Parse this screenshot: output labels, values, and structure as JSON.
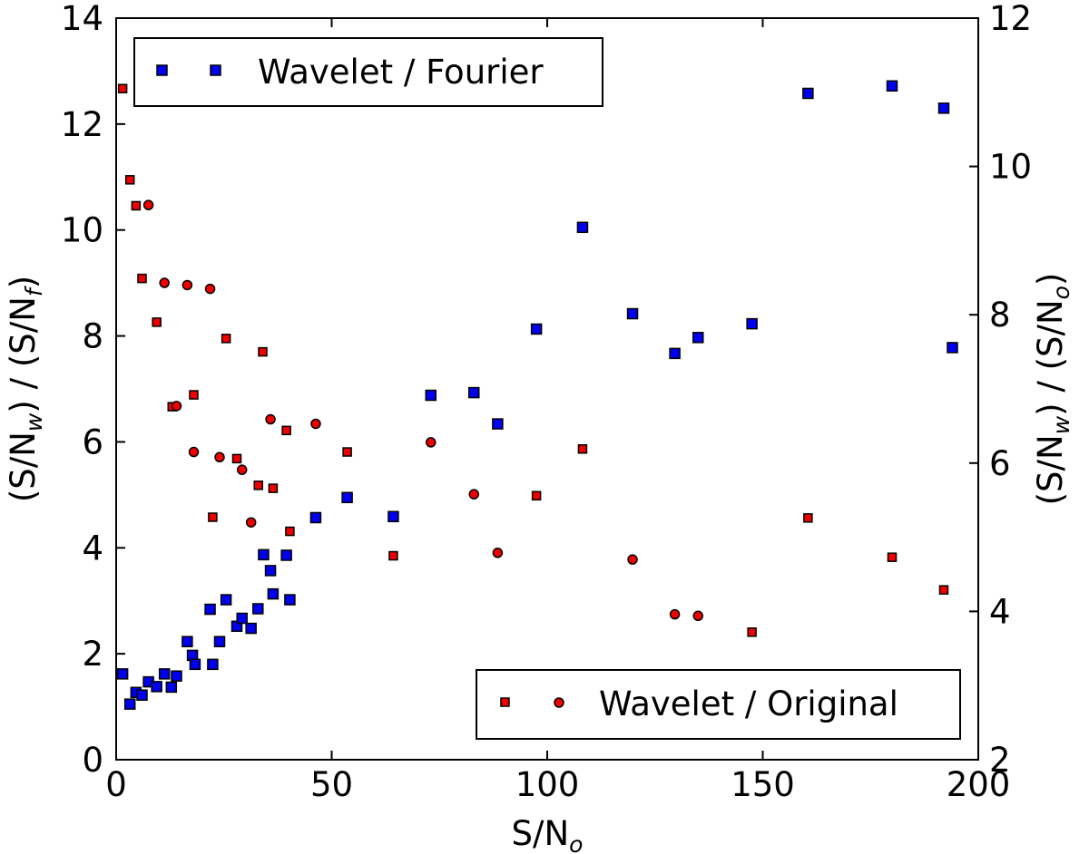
{
  "chart_data": {
    "type": "scatter",
    "x_axis": {
      "label": "S/N",
      "label_sub": "o",
      "lim": [
        0,
        200
      ],
      "ticks": [
        "0",
        "50",
        "100",
        "150",
        "200"
      ]
    },
    "y_left": {
      "label_parts": [
        "(S/N",
        "w",
        ") / (S/N",
        "f",
        ")"
      ],
      "lim": [
        0,
        14
      ],
      "ticks": [
        "0",
        "2",
        "4",
        "6",
        "8",
        "10",
        "12",
        "14"
      ]
    },
    "y_right": {
      "label_parts": [
        "(S/N",
        "w",
        ") / (S/N",
        "o",
        ")"
      ],
      "lim": [
        2,
        12
      ],
      "ticks": [
        "2",
        "4",
        "6",
        "8",
        "10",
        "12"
      ]
    },
    "grid": false,
    "legends": [
      {
        "label": "Wavelet / Fourier",
        "placement": "top-left",
        "color": "#0000ee",
        "markers": [
          "square",
          "square"
        ]
      },
      {
        "label": "Wavelet / Original",
        "placement": "bottom-right",
        "color": "#ee0000",
        "markers": [
          "square",
          "circle"
        ]
      }
    ],
    "series": [
      {
        "axis": "left",
        "marker": "square",
        "color": "#0000ee",
        "size": "large",
        "points": [
          [
            1.5,
            1.62
          ],
          [
            3.2,
            1.05
          ],
          [
            4.6,
            1.27
          ],
          [
            6.0,
            1.22
          ],
          [
            7.5,
            1.47
          ],
          [
            9.4,
            1.38
          ],
          [
            11.2,
            1.62
          ],
          [
            12.8,
            1.37
          ],
          [
            14.0,
            1.58
          ],
          [
            16.5,
            2.23
          ],
          [
            17.7,
            1.97
          ],
          [
            18.3,
            1.8
          ],
          [
            21.8,
            2.84
          ],
          [
            22.4,
            1.8
          ],
          [
            24.0,
            2.23
          ],
          [
            25.5,
            3.02
          ],
          [
            28.0,
            2.52
          ],
          [
            29.2,
            2.67
          ],
          [
            31.3,
            2.48
          ],
          [
            32.9,
            2.85
          ],
          [
            34.2,
            3.87
          ],
          [
            35.8,
            3.57
          ],
          [
            36.4,
            3.13
          ],
          [
            39.5,
            3.86
          ],
          [
            40.3,
            3.02
          ],
          [
            46.3,
            4.57
          ],
          [
            53.6,
            4.95
          ],
          [
            64.3,
            4.59
          ],
          [
            73.0,
            6.88
          ],
          [
            83.0,
            6.93
          ],
          [
            88.5,
            6.34
          ],
          [
            97.5,
            8.13
          ],
          [
            108.2,
            10.05
          ],
          [
            119.8,
            8.42
          ],
          [
            129.6,
            7.67
          ],
          [
            135.0,
            7.97
          ],
          [
            147.5,
            8.23
          ],
          [
            160.5,
            12.58
          ],
          [
            180.0,
            12.72
          ],
          [
            192.0,
            12.3
          ],
          [
            194.0,
            7.78
          ]
        ]
      },
      {
        "axis": "right",
        "marker": "square",
        "color": "#ee0000",
        "size": "small",
        "points": [
          [
            1.5,
            11.05
          ],
          [
            3.2,
            9.82
          ],
          [
            4.6,
            9.47
          ],
          [
            6.0,
            8.49
          ],
          [
            9.4,
            7.9
          ],
          [
            13.0,
            6.76
          ],
          [
            18.0,
            6.92
          ],
          [
            22.4,
            5.27
          ],
          [
            25.5,
            7.68
          ],
          [
            28.0,
            6.06
          ],
          [
            33.0,
            5.7
          ],
          [
            34.0,
            7.5
          ],
          [
            36.4,
            5.66
          ],
          [
            39.5,
            6.44
          ],
          [
            40.3,
            5.08
          ],
          [
            53.6,
            6.15
          ],
          [
            64.3,
            4.75
          ],
          [
            97.5,
            5.56
          ],
          [
            108.2,
            6.19
          ],
          [
            147.5,
            3.72
          ],
          [
            160.5,
            5.26
          ],
          [
            180.0,
            4.73
          ],
          [
            192.0,
            4.29
          ]
        ]
      },
      {
        "axis": "right",
        "marker": "circle",
        "color": "#ee0000",
        "size": "small",
        "points": [
          [
            7.5,
            9.48
          ],
          [
            11.2,
            8.43
          ],
          [
            14.0,
            6.77
          ],
          [
            16.5,
            8.4
          ],
          [
            18.0,
            6.15
          ],
          [
            21.8,
            8.35
          ],
          [
            24.0,
            6.08
          ],
          [
            29.2,
            5.91
          ],
          [
            31.3,
            5.2
          ],
          [
            35.8,
            6.59
          ],
          [
            46.3,
            6.53
          ],
          [
            73.0,
            6.28
          ],
          [
            83.0,
            5.58
          ],
          [
            88.5,
            4.79
          ],
          [
            119.8,
            4.7
          ],
          [
            129.6,
            3.96
          ],
          [
            135.0,
            3.94
          ]
        ]
      }
    ]
  }
}
